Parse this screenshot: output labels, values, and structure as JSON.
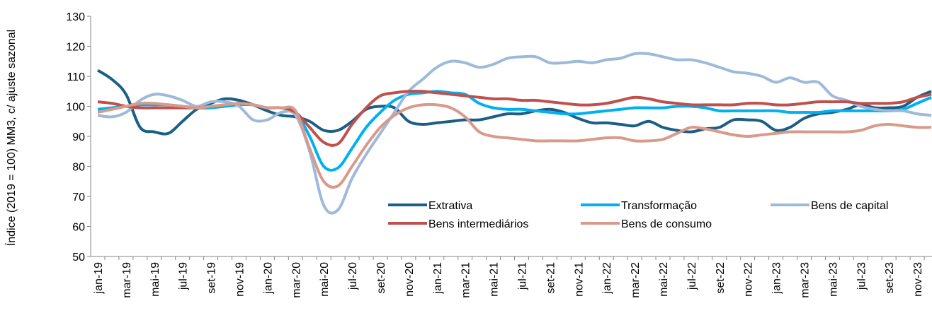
{
  "chart_data": {
    "type": "line",
    "y_label": "Índice (2019 = 100) MM3, c/ ajuste sazonal",
    "categories": [
      "jan-19",
      null,
      "mar-19",
      null,
      "mai-19",
      null,
      "jul-19",
      null,
      "set-19",
      null,
      "nov-19",
      null,
      "jan-20",
      null,
      "mar-20",
      null,
      "mai-20",
      null,
      "jul-20",
      null,
      "set-20",
      null,
      "nov-20",
      null,
      "jan-21",
      null,
      "mar-21",
      null,
      "mai-21",
      null,
      "jul-21",
      null,
      "set-21",
      null,
      "nov-21",
      null,
      "jan-22",
      null,
      "mar-22",
      null,
      "mai-22",
      null,
      "jul-22",
      null,
      "set-22",
      null,
      "nov-22",
      null,
      "jan-23",
      null,
      "mar-23",
      null,
      "mai-23",
      null,
      "jul-23",
      null,
      "set-23",
      null,
      "nov-23",
      null
    ],
    "ylim": [
      50,
      130
    ],
    "yticks": [
      50,
      60,
      70,
      80,
      90,
      100,
      110,
      120,
      130
    ],
    "legend": "lower right",
    "grid": false,
    "series": [
      {
        "name": "Extrativa",
        "color": "#1c5f86",
        "values": [
          112,
          109,
          104,
          93,
          91.5,
          91,
          95,
          99,
          101,
          102.5,
          102,
          100.5,
          98.5,
          97,
          96.5,
          95,
          92,
          92,
          95,
          99,
          100,
          99.5,
          95,
          94,
          94.5,
          95,
          95.5,
          95.5,
          96.5,
          97.5,
          97.5,
          98.5,
          99,
          98,
          96,
          94.5,
          94.5,
          94,
          93.5,
          95,
          93,
          92,
          91.5,
          92.5,
          93,
          95.5,
          95.5,
          95,
          92,
          93,
          96,
          97.5,
          98,
          99,
          100.5,
          99.5,
          99.5,
          100,
          103,
          105
        ]
      },
      {
        "name": "Transformação",
        "color": "#00b0f0",
        "values": [
          99,
          99.5,
          100,
          100.5,
          100.5,
          100.5,
          100,
          99.5,
          99.5,
          100,
          100.5,
          100.5,
          99.5,
          99.5,
          98,
          90,
          80,
          79.5,
          86,
          93,
          98,
          102,
          104,
          104.5,
          105,
          104.5,
          104,
          101,
          99.5,
          99,
          99,
          98.5,
          98,
          97.5,
          97.5,
          98,
          98.5,
          99,
          99.5,
          99.5,
          99.5,
          100,
          100,
          99.5,
          98.5,
          98.5,
          98.5,
          98.5,
          98.5,
          98,
          98,
          98,
          98.5,
          98.5,
          98.5,
          98.5,
          98.5,
          99,
          101,
          103
        ]
      },
      {
        "name": "Bens de capital",
        "color": "#9dbbd9",
        "values": [
          97,
          96.5,
          98,
          102,
          104,
          103.5,
          102,
          100,
          101.5,
          101.5,
          100,
          95.5,
          95.5,
          98,
          97,
          85,
          67,
          65.5,
          76,
          84,
          91,
          98,
          105,
          109,
          113,
          115,
          114.5,
          113,
          114,
          116,
          116.5,
          116.5,
          114.5,
          114.5,
          115,
          114.5,
          115.5,
          116,
          117.5,
          117.5,
          116.5,
          115.5,
          115.5,
          114.5,
          113,
          111.5,
          111,
          110,
          108,
          109.5,
          108,
          108,
          103.5,
          102,
          100,
          99,
          98.5,
          98.5,
          97.5,
          97
        ]
      },
      {
        "name": "Bens intermediários",
        "color": "#c0504d",
        "values": [
          101.5,
          101,
          100,
          99.5,
          99.5,
          99.5,
          99.5,
          99.5,
          100,
          100.5,
          101,
          100.5,
          99.5,
          99.5,
          98,
          93,
          88,
          87.5,
          94,
          99.5,
          103.5,
          104.5,
          105,
          105,
          104.5,
          104,
          103.5,
          103,
          102.5,
          102.5,
          102,
          102,
          101.5,
          101,
          100.5,
          100.5,
          101,
          102,
          103,
          102.5,
          101.5,
          101,
          100.5,
          100.5,
          100.5,
          100.5,
          101,
          101,
          100.5,
          100.5,
          101,
          101.5,
          101.5,
          101.5,
          101,
          101,
          101,
          101.5,
          103,
          104
        ]
      },
      {
        "name": "Bens de consumo",
        "color": "#d99a8a",
        "values": [
          98,
          99,
          100,
          101,
          101,
          100.5,
          100,
          99.5,
          100,
          100.5,
          101,
          100.5,
          99.5,
          99.5,
          98.5,
          86,
          75,
          73.5,
          80,
          87,
          93,
          97,
          99.5,
          100.5,
          100.5,
          99.5,
          96.5,
          91.5,
          90,
          89.5,
          89,
          88.5,
          88.5,
          88.5,
          88.5,
          89,
          89.5,
          89.5,
          88.5,
          88.5,
          89,
          91,
          93,
          92.5,
          91.5,
          90.5,
          90,
          90.5,
          91,
          91.5,
          91.5,
          91.5,
          91.5,
          91.5,
          92,
          93.5,
          94,
          93.5,
          93,
          93
        ]
      }
    ]
  }
}
